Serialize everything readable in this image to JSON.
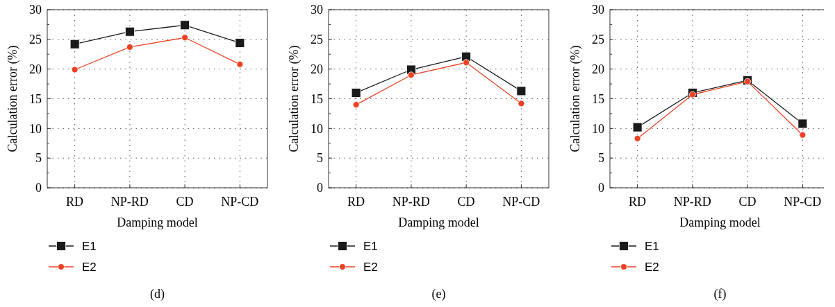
{
  "chart_data": [
    {
      "type": "line",
      "xlabel": "Damping model",
      "ylabel": "Calculation error (%)",
      "categories": [
        "RD",
        "NP-RD",
        "CD",
        "NP-CD"
      ],
      "ylim": [
        0,
        30
      ],
      "yticks": [
        0,
        {
          "value": 2.5,
          "label": null
        },
        5,
        {
          "value": 7.5,
          "label": null
        },
        10,
        {
          "value": 12.5,
          "label": null
        },
        15,
        {
          "value": 17.5,
          "label": null
        },
        20,
        {
          "value": 22.5,
          "label": null
        },
        25,
        {
          "value": 27.5,
          "label": null
        },
        30
      ],
      "grid": true,
      "legend": "bottom left",
      "annotations": [
        "(d)"
      ],
      "series": [
        {
          "name": "E1",
          "color": "#1a1a1a",
          "marker": "square",
          "values": [
            24.2,
            26.3,
            27.4,
            24.4
          ]
        },
        {
          "name": "E2",
          "color": "#ee4123",
          "marker": "circle",
          "values": [
            19.9,
            23.7,
            25.3,
            20.8
          ]
        }
      ]
    },
    {
      "type": "line",
      "xlabel": "Damping model",
      "ylabel": "Calculation error (%)",
      "categories": [
        "RD",
        "NP-RD",
        "CD",
        "NP-CD"
      ],
      "ylim": [
        0,
        30
      ],
      "yticks": [
        0,
        {
          "value": 2.5,
          "label": null
        },
        5,
        {
          "value": 7.5,
          "label": null
        },
        10,
        {
          "value": 12.5,
          "label": null
        },
        15,
        {
          "value": 17.5,
          "label": null
        },
        20,
        {
          "value": 22.5,
          "label": null
        },
        25,
        {
          "value": 27.5,
          "label": null
        },
        30
      ],
      "grid": true,
      "legend": "bottom left",
      "annotations": [
        "(e)"
      ],
      "series": [
        {
          "name": "E1",
          "color": "#1a1a1a",
          "marker": "square",
          "values": [
            16.0,
            19.9,
            22.1,
            16.3
          ]
        },
        {
          "name": "E2",
          "color": "#ee4123",
          "marker": "circle",
          "values": [
            14.0,
            19.0,
            21.1,
            14.2
          ]
        }
      ]
    },
    {
      "type": "line",
      "xlabel": "Damping model",
      "ylabel": "Calculation error (%)",
      "categories": [
        "RD",
        "NP-RD",
        "CD",
        "NP-CD"
      ],
      "ylim": [
        0,
        30
      ],
      "yticks": [
        0,
        {
          "value": 2.5,
          "label": null
        },
        5,
        {
          "value": 7.5,
          "label": null
        },
        10,
        {
          "value": 12.5,
          "label": null
        },
        15,
        {
          "value": 17.5,
          "label": null
        },
        20,
        {
          "value": 22.5,
          "label": null
        },
        25,
        {
          "value": 27.5,
          "label": null
        },
        30
      ],
      "grid": true,
      "legend": "bottom left",
      "annotations": [
        "(f)"
      ],
      "series": [
        {
          "name": "E1",
          "color": "#1a1a1a",
          "marker": "square",
          "values": [
            10.2,
            16.0,
            18.1,
            10.8
          ]
        },
        {
          "name": "E2",
          "color": "#ee4123",
          "marker": "circle",
          "values": [
            8.3,
            15.7,
            17.9,
            8.9
          ]
        }
      ]
    }
  ]
}
